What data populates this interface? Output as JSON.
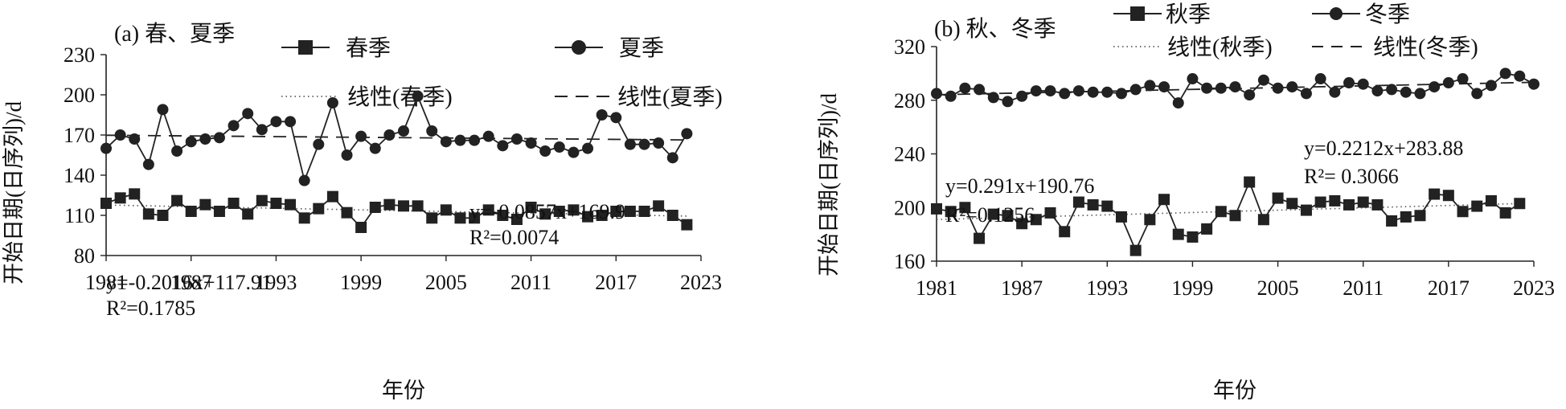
{
  "chart_data": [
    {
      "type": "line",
      "title": "(a) 春、夏季",
      "xlabel": "年份",
      "ylabel": "开始日期(日序列)/d",
      "xlim": [
        1981,
        2023
      ],
      "ylim": [
        80,
        230
      ],
      "x_ticks": [
        "1981",
        "1987",
        "1993",
        "1999",
        "2005",
        "2011",
        "2017",
        "2023"
      ],
      "y_ticks": [
        "80",
        "110",
        "140",
        "170",
        "200",
        "230"
      ],
      "grid": false,
      "legend_position": "top",
      "series": [
        {
          "name": "春季",
          "marker": "square",
          "x_start": 1981,
          "values": [
            119,
            123,
            126,
            111,
            110,
            121,
            113,
            118,
            113,
            119,
            111,
            121,
            119,
            118,
            108,
            115,
            124,
            112,
            101,
            116,
            118,
            117,
            117,
            108,
            114,
            108,
            108,
            114,
            110,
            107,
            116,
            111,
            113,
            114,
            109,
            110,
            113,
            113,
            113,
            117,
            110,
            103
          ]
        },
        {
          "name": "夏季",
          "marker": "circle",
          "x_start": 1981,
          "values": [
            160,
            170,
            167,
            148,
            189,
            158,
            165,
            167,
            168,
            177,
            186,
            174,
            180,
            180,
            136,
            163,
            194,
            155,
            169,
            160,
            170,
            173,
            199,
            173,
            165,
            166,
            166,
            169,
            162,
            167,
            164,
            158,
            161,
            157,
            160,
            185,
            183,
            163,
            163,
            164,
            153,
            171
          ]
        },
        {
          "name": "线性(春季)",
          "style": "dotted",
          "trend_of": "春季"
        },
        {
          "name": "线性(夏季)",
          "style": "dashed",
          "trend_of": "夏季"
        }
      ],
      "trendlines": [
        {
          "series": "春季",
          "slope": -0.2016,
          "intercept": 117.91,
          "equation": "y=-0.2016x+117.91",
          "r2": "R²=0.1785"
        },
        {
          "series": "夏季",
          "slope": -0.0857,
          "intercept": 169.9,
          "equation": "y=-0.0857x+169.9",
          "r2": "R²=0.0074"
        }
      ]
    },
    {
      "type": "line",
      "title": "(b) 秋、冬季",
      "xlabel": "年份",
      "ylabel": "开始日期(日序列)/d",
      "xlim": [
        1981,
        2023
      ],
      "ylim": [
        160,
        320
      ],
      "x_ticks": [
        "1981",
        "1987",
        "1993",
        "1999",
        "2005",
        "2011",
        "2017",
        "2023"
      ],
      "y_ticks": [
        "160",
        "200",
        "240",
        "280",
        "320"
      ],
      "grid": false,
      "legend_position": "top",
      "series": [
        {
          "name": "秋季",
          "marker": "square",
          "x_start": 1981,
          "values": [
            199,
            197,
            200,
            177,
            195,
            194,
            188,
            191,
            196,
            182,
            204,
            202,
            201,
            193,
            168,
            191,
            206,
            180,
            178,
            184,
            197,
            194,
            219,
            191,
            207,
            203,
            198,
            204,
            205,
            202,
            204,
            202,
            190,
            193,
            194,
            210,
            209,
            197,
            201,
            205,
            196,
            203
          ]
        },
        {
          "name": "冬季",
          "marker": "circle",
          "x_start": 1981,
          "values": [
            285,
            283,
            289,
            288,
            282,
            279,
            283,
            287,
            287,
            285,
            287,
            286,
            286,
            285,
            288,
            291,
            290,
            278,
            296,
            289,
            289,
            290,
            284,
            295,
            289,
            290,
            285,
            296,
            286,
            293,
            292,
            287,
            288,
            286,
            285,
            290,
            293,
            296,
            285,
            291,
            300,
            298,
            292
          ]
        },
        {
          "name": "线性(秋季)",
          "style": "dotted",
          "trend_of": "秋季"
        },
        {
          "name": "线性(冬季)",
          "style": "dashed",
          "trend_of": "冬季"
        }
      ],
      "trendlines": [
        {
          "series": "秋季",
          "slope": 0.291,
          "intercept": 190.76,
          "equation": "y=0.291x+190.76",
          "r2": "R²=0.1256"
        },
        {
          "series": "冬季",
          "slope": 0.2212,
          "intercept": 283.88,
          "equation": "y=0.2212x+283.88",
          "r2": "R²= 0.3066"
        }
      ]
    }
  ]
}
